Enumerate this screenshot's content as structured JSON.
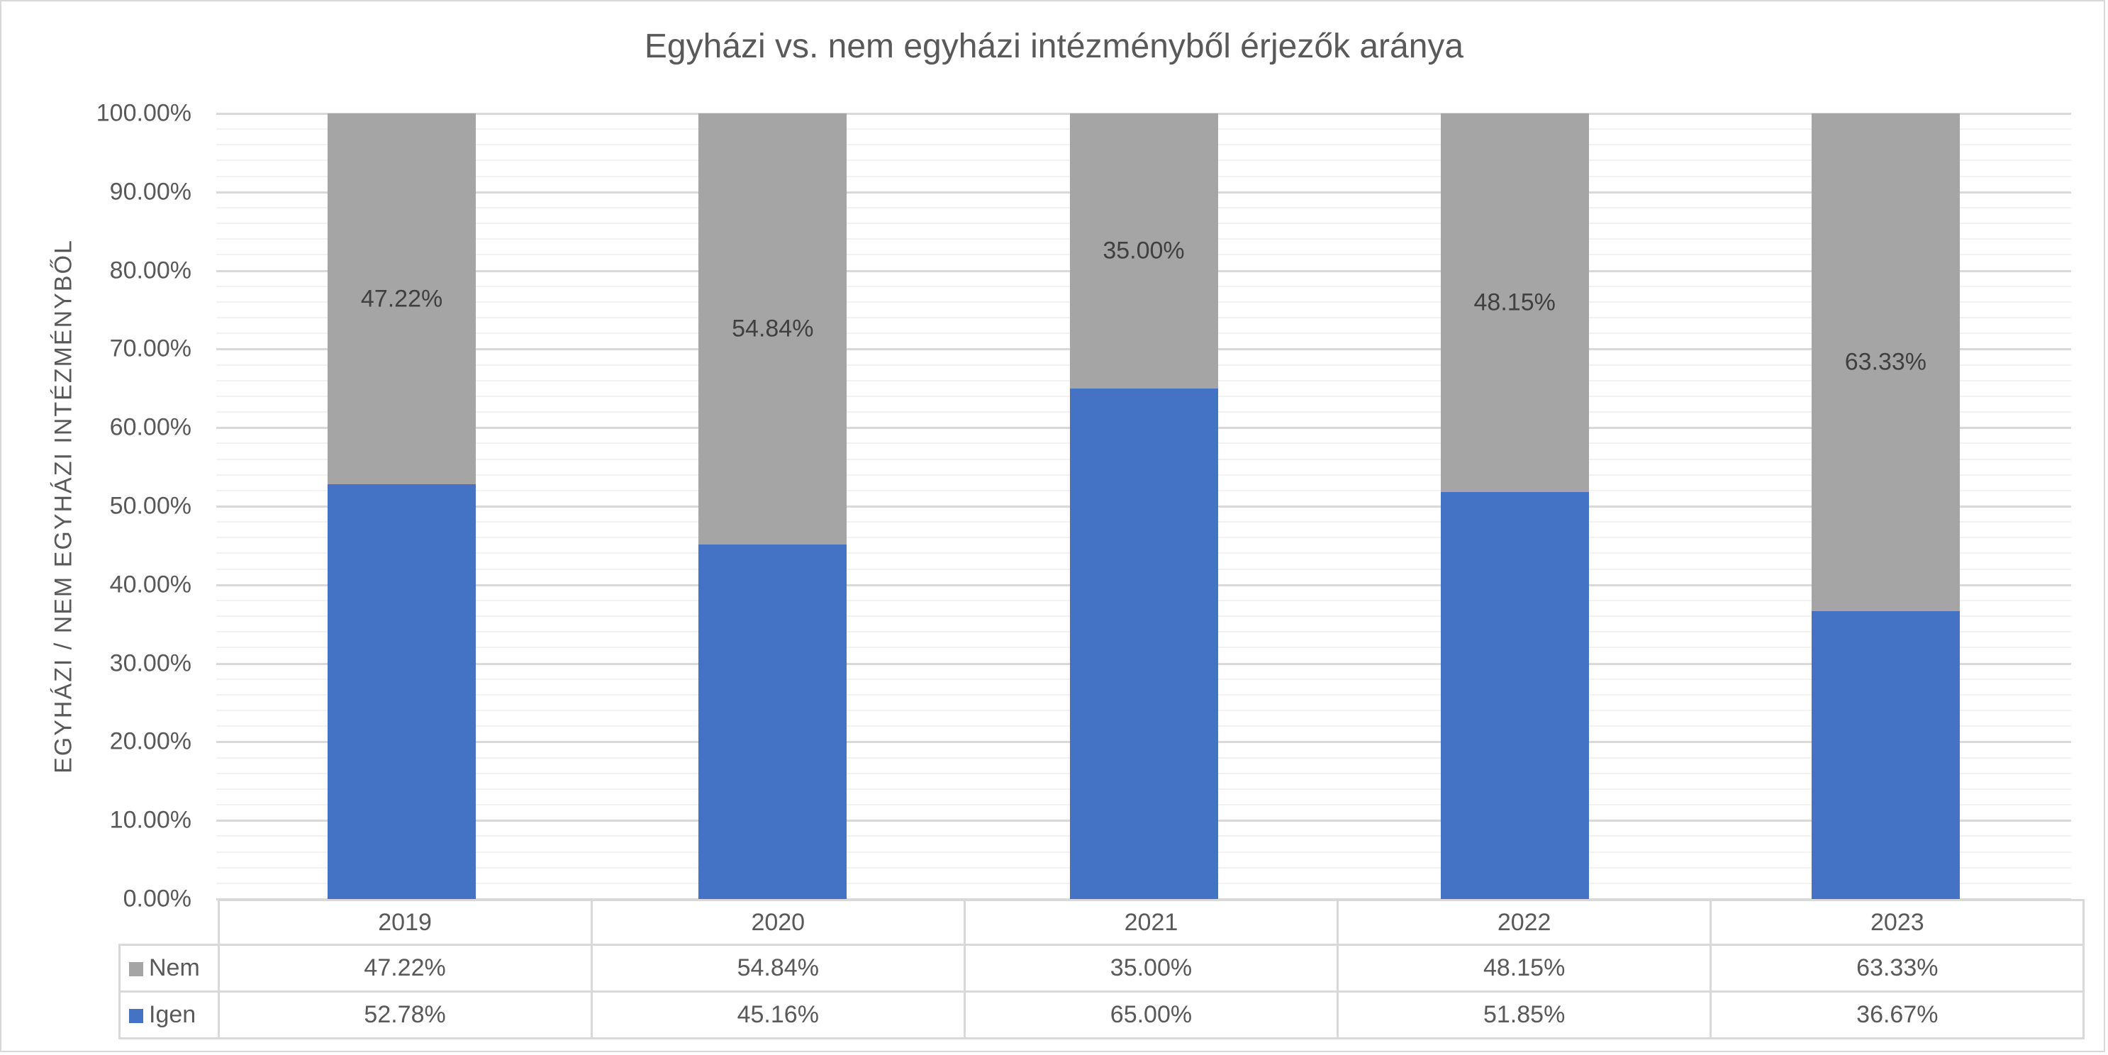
{
  "chart_data": {
    "type": "bar",
    "stacked": true,
    "percent_stacked": true,
    "title": "Egyházi vs. nem egyházi intézményből érjezők aránya",
    "xlabel": "",
    "ylabel": "EGYHÁZI / NEM EGYHÁZI INTÉZMÉNYBŐL",
    "ylim": [
      0,
      100
    ],
    "y_ticks": [
      "0.00%",
      "10.00%",
      "20.00%",
      "30.00%",
      "40.00%",
      "50.00%",
      "60.00%",
      "70.00%",
      "80.00%",
      "90.00%",
      "100.00%"
    ],
    "grid": {
      "major_step": 10,
      "minor_step": 2
    },
    "categories": [
      "2019",
      "2020",
      "2021",
      "2022",
      "2023"
    ],
    "series": [
      {
        "name": "Igen",
        "color": "#4472c4",
        "values": [
          52.78,
          45.16,
          65.0,
          51.85,
          36.67
        ],
        "labels": [
          "52.78%",
          "45.16%",
          "65.00%",
          "51.85%",
          "36.67%"
        ]
      },
      {
        "name": "Nem",
        "color": "#a5a5a5",
        "values": [
          47.22,
          54.84,
          35.0,
          48.15,
          63.33
        ],
        "labels": [
          "47.22%",
          "54.84%",
          "35.00%",
          "48.15%",
          "63.33%"
        ]
      }
    ],
    "data_labels_shown_on": "Nem",
    "legend": {
      "position": "data-table",
      "entries": [
        "Nem",
        "Igen"
      ]
    },
    "data_table": {
      "header": [
        "2019",
        "2020",
        "2021",
        "2022",
        "2023"
      ],
      "rows": [
        {
          "name": "Nem",
          "values": [
            "47.22%",
            "54.84%",
            "35.00%",
            "48.15%",
            "63.33%"
          ]
        },
        {
          "name": "Igen",
          "values": [
            "52.78%",
            "45.16%",
            "65.00%",
            "51.85%",
            "36.67%"
          ]
        }
      ]
    }
  }
}
